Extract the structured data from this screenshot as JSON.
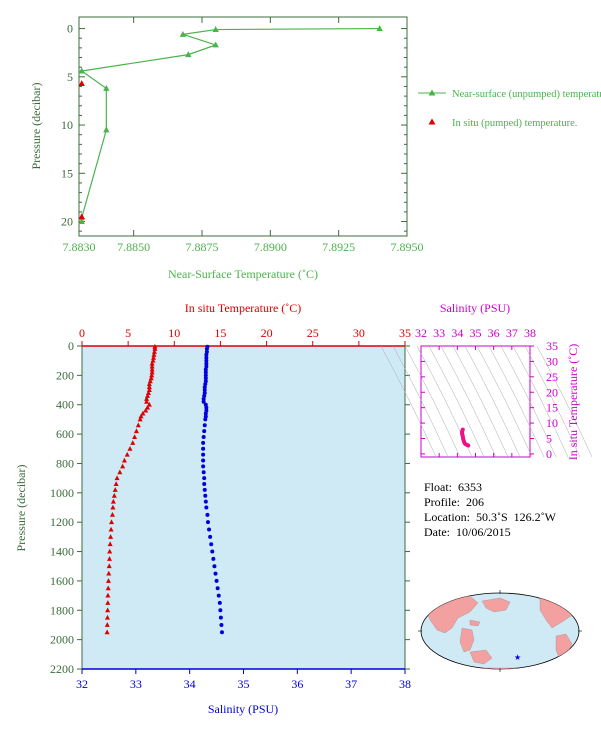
{
  "colors": {
    "green": "#4bb34b",
    "red": "#dd0000",
    "blue": "#0000dd",
    "magenta": "#cc00cc",
    "axis_green": "#3d6b3d",
    "plot_bg": "#cfeaf5",
    "land": "#f2a0a0"
  },
  "chart_data": [
    {
      "type": "line",
      "xlabel": "Near-Surface Temperature (˚C)",
      "ylabel": "Pressure (decibar)",
      "xlim": [
        7.883,
        7.895
      ],
      "ylim": [
        21.5,
        -1.2
      ],
      "xticks": [
        "7.8830",
        "7.8850",
        "7.8875",
        "7.8900",
        "7.8925",
        "7.8950"
      ],
      "xtick_values": [
        7.883,
        7.885,
        7.8875,
        7.89,
        7.8925,
        7.895
      ],
      "yticks": [
        "0",
        "5",
        "10",
        "15",
        "20"
      ],
      "ytick_values": [
        0,
        5,
        10,
        15,
        20
      ],
      "series": [
        {
          "name": "Near-surface (unpumped) temperature.",
          "marker": "triangle",
          "color": "#4bb34b",
          "x": [
            7.894,
            7.888,
            7.8868,
            7.888,
            7.887,
            7.8831,
            7.884,
            7.884,
            7.8831,
            7.8831
          ],
          "y": [
            0,
            0.1,
            0.6,
            1.7,
            2.7,
            4.4,
            6.2,
            10.5,
            19.6,
            20.0
          ]
        },
        {
          "name": "In situ (pumped) temperature.",
          "marker": "triangle",
          "color": "#dd0000",
          "x": [
            7.8831,
            7.8831
          ],
          "y": [
            5.7,
            19.5
          ]
        }
      ]
    },
    {
      "type": "scatter",
      "ylabel": "Pressure (decibar)",
      "top_xlabel": "In situ Temperature (˚C)",
      "bottom_xlabel": "Salinity (PSU)",
      "temp_lim": [
        0,
        35
      ],
      "temp_ticks": [
        "0",
        "5",
        "10",
        "15",
        "20",
        "25",
        "30",
        "35"
      ],
      "sal_lim": [
        32,
        38
      ],
      "sal_ticks": [
        "32",
        "33",
        "34",
        "35",
        "36",
        "37",
        "38"
      ],
      "ylim": [
        2200,
        0
      ],
      "yticks": [
        "0",
        "200",
        "400",
        "600",
        "800",
        "1000",
        "1200",
        "1400",
        "1600",
        "1800",
        "2000",
        "2200"
      ],
      "temperature": {
        "pressure": [
          5,
          20,
          40,
          60,
          80,
          100,
          120,
          140,
          160,
          180,
          200,
          220,
          240,
          260,
          280,
          300,
          320,
          340,
          360,
          380,
          400,
          420,
          440,
          460,
          480,
          500,
          540,
          580,
          620,
          660,
          700,
          740,
          780,
          820,
          860,
          900,
          940,
          980,
          1020,
          1060,
          1100,
          1150,
          1200,
          1250,
          1300,
          1350,
          1400,
          1450,
          1500,
          1550,
          1600,
          1650,
          1700,
          1750,
          1800,
          1850,
          1900,
          1950
        ],
        "value": [
          7.9,
          7.9,
          7.85,
          7.8,
          7.75,
          7.7,
          7.6,
          7.6,
          7.6,
          7.6,
          7.55,
          7.5,
          7.4,
          7.3,
          7.3,
          7.3,
          7.2,
          7.1,
          7.0,
          7.0,
          7.3,
          7.1,
          6.9,
          6.6,
          6.4,
          6.3,
          6.1,
          5.9,
          5.7,
          5.5,
          5.2,
          4.9,
          4.6,
          4.4,
          4.1,
          3.8,
          3.7,
          3.6,
          3.5,
          3.4,
          3.35,
          3.3,
          3.2,
          3.15,
          3.1,
          3.05,
          3.0,
          2.98,
          2.95,
          2.9,
          2.87,
          2.84,
          2.81,
          2.8,
          2.78,
          2.76,
          2.74,
          2.72
        ]
      },
      "salinity": {
        "pressure": [
          5,
          20,
          40,
          60,
          80,
          100,
          120,
          140,
          160,
          180,
          200,
          220,
          240,
          260,
          280,
          300,
          320,
          340,
          360,
          380,
          400,
          420,
          440,
          460,
          480,
          500,
          540,
          580,
          620,
          660,
          700,
          740,
          780,
          820,
          860,
          900,
          940,
          980,
          1020,
          1060,
          1100,
          1150,
          1200,
          1250,
          1300,
          1350,
          1400,
          1450,
          1500,
          1550,
          1600,
          1650,
          1700,
          1750,
          1800,
          1850,
          1900,
          1950
        ],
        "value": [
          34.33,
          34.32,
          34.32,
          34.31,
          34.31,
          34.31,
          34.31,
          34.31,
          34.3,
          34.3,
          34.3,
          34.3,
          34.3,
          34.29,
          34.28,
          34.28,
          34.28,
          34.27,
          34.26,
          34.26,
          34.3,
          34.31,
          34.31,
          34.3,
          34.3,
          34.29,
          34.28,
          34.27,
          34.26,
          34.25,
          34.25,
          34.25,
          34.25,
          34.25,
          34.26,
          34.27,
          34.27,
          34.28,
          34.29,
          34.3,
          34.31,
          34.33,
          34.34,
          34.36,
          34.38,
          34.4,
          34.42,
          34.44,
          34.46,
          34.48,
          34.5,
          34.52,
          34.54,
          34.56,
          34.57,
          34.58,
          34.59,
          34.6
        ]
      }
    },
    {
      "type": "scatter",
      "title": "Salinity (PSU)",
      "ylabel": "In situ Temperature (˚C)",
      "xticks": [
        "32",
        "33",
        "34",
        "35",
        "36",
        "37",
        "38"
      ],
      "yticks": [
        "0",
        "5",
        "10",
        "15",
        "20",
        "25",
        "30",
        "35"
      ],
      "xlim": [
        32,
        38
      ],
      "ylim": [
        -1,
        35
      ],
      "salinity": [
        34.3,
        34.28,
        34.26,
        34.26,
        34.3,
        34.32,
        34.36,
        34.4,
        34.44,
        34.5,
        34.56,
        34.6
      ],
      "temperature": [
        7.9,
        7.6,
        7.2,
        6.6,
        5.7,
        4.9,
        4.1,
        3.5,
        3.2,
        3.0,
        2.85,
        2.72
      ]
    }
  ],
  "float_info": {
    "float": "Float:  6353",
    "profile": "Profile:  206",
    "location": "Location:  50.3˚S  126.2˚W",
    "date": "Date:  10/06/2015"
  }
}
